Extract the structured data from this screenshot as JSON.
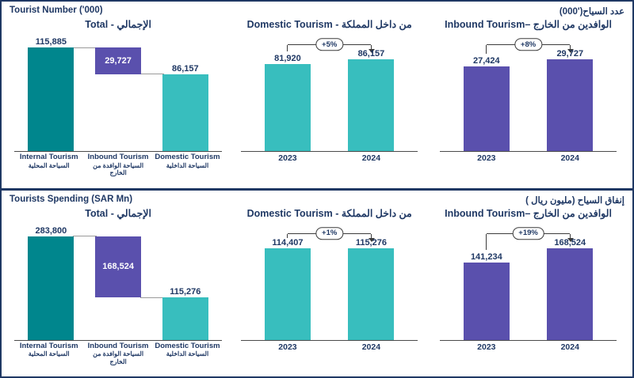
{
  "colors": {
    "navy": "#1F3864",
    "dark_teal": "#00868D",
    "teal": "#38BEBE",
    "purple": "#5A50AD"
  },
  "panels": [
    {
      "title_en": "Tourist Number ('000)",
      "title_ar": "عدد السياح('000)"
    },
    {
      "title_en": "Tourists Spending (SAR Mn)",
      "title_ar": "إنفاق السياح (مليون ريال )"
    }
  ],
  "chart_data": [
    {
      "id": "tourist-number-total",
      "type": "waterfall",
      "title": "Total - الإجمالي",
      "categories": [
        "Internal Tourism",
        "Inbound Tourism",
        "Domestic Tourism"
      ],
      "categories_ar": [
        "السياحة المحلية",
        "السياحة الوافدة من الخارج",
        "السياحة الداخلية"
      ],
      "values": [
        115885,
        29727,
        86157
      ],
      "value_labels": [
        "115,885",
        "29,727",
        "86,157"
      ],
      "bar_colors": [
        "#00868D",
        "#5A50AD",
        "#38BEBE"
      ]
    },
    {
      "id": "tourist-number-domestic",
      "type": "bar",
      "title": "Domestic Tourism - من داخل المملكة",
      "categories": [
        "2023",
        "2024"
      ],
      "values": [
        81920,
        86157
      ],
      "value_labels": [
        "81,920",
        "86,157"
      ],
      "growth_label": "+5%",
      "bar_color": "#38BEBE"
    },
    {
      "id": "tourist-number-inbound",
      "type": "bar",
      "title": "Inbound Tourism– الوافدين من الخارج",
      "categories": [
        "2023",
        "2024"
      ],
      "values": [
        27424,
        29727
      ],
      "value_labels": [
        "27,424",
        "29,727"
      ],
      "growth_label": "+8%",
      "bar_color": "#5A50AD"
    },
    {
      "id": "tourists-spending-total",
      "type": "waterfall",
      "title": "Total - الإجمالي",
      "categories": [
        "Internal Tourism",
        "Inbound Tourism",
        "Domestic Tourism"
      ],
      "categories_ar": [
        "السياحة المحلية",
        "السياحة الوافدة من الخارج",
        "السياحة الداخلية"
      ],
      "values": [
        283800,
        168524,
        115276
      ],
      "value_labels": [
        "283,800",
        "168,524",
        "115,276"
      ],
      "bar_colors": [
        "#00868D",
        "#5A50AD",
        "#38BEBE"
      ]
    },
    {
      "id": "tourists-spending-domestic",
      "type": "bar",
      "title": "Domestic Tourism - من داخل المملكة",
      "categories": [
        "2023",
        "2024"
      ],
      "values": [
        114407,
        115276
      ],
      "value_labels": [
        "114,407",
        "115,276"
      ],
      "growth_label": "+1%",
      "bar_color": "#38BEBE"
    },
    {
      "id": "tourists-spending-inbound",
      "type": "bar",
      "title": "Inbound Tourism– الوافدين من الخارج",
      "categories": [
        "2023",
        "2024"
      ],
      "values": [
        141234,
        168524
      ],
      "value_labels": [
        "141,234",
        "168,524"
      ],
      "growth_label": "+19%",
      "bar_color": "#5A50AD"
    }
  ]
}
